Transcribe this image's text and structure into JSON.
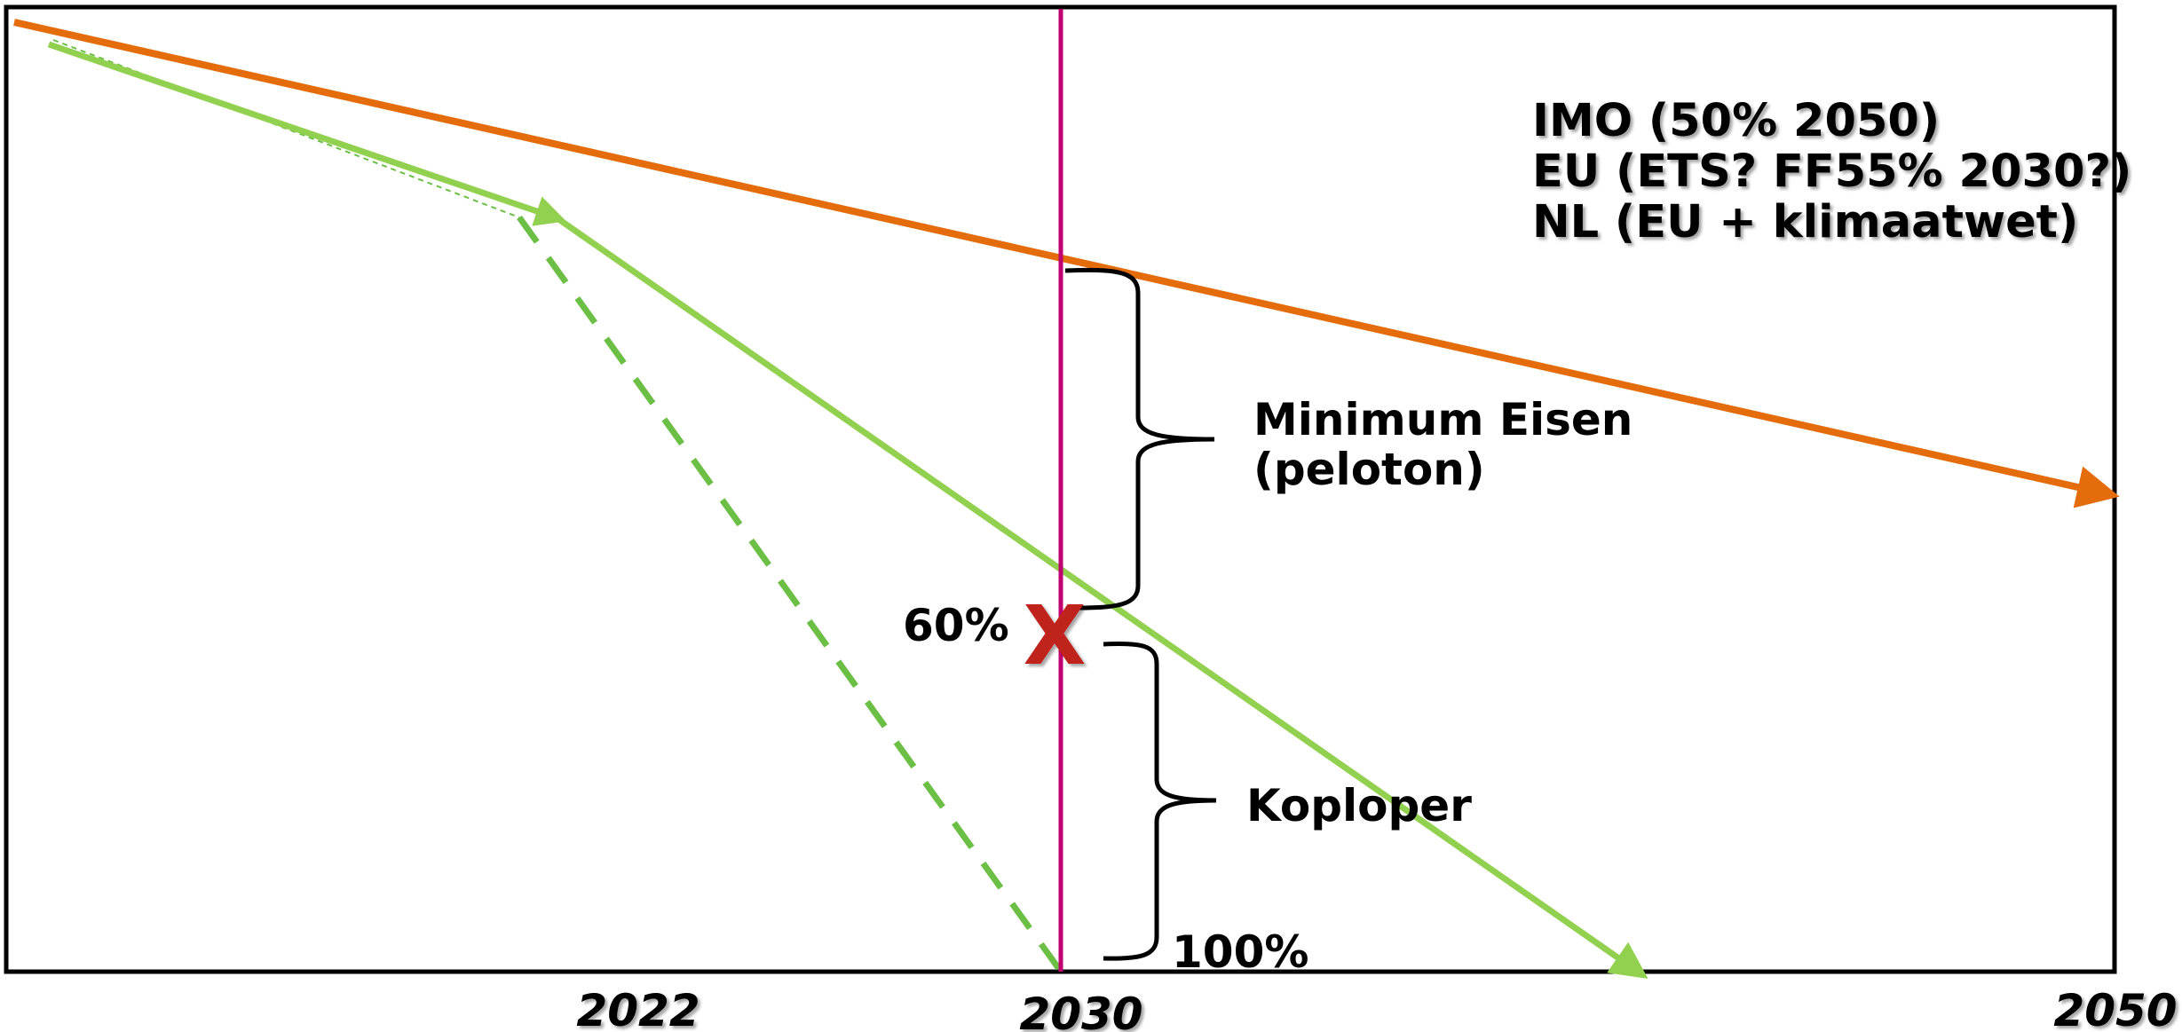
{
  "x_labels": {
    "y2022": "2022",
    "y2030": "2030",
    "y2050": "2050"
  },
  "policy_notes": {
    "imo": "IMO (50% 2050)",
    "eu": "EU (ETS? FF55% 2030?)",
    "nl": "NL (EU + klimaatwet)"
  },
  "brackets": {
    "minimum_line1": "Minimum Eisen",
    "minimum_line2": "(peloton)",
    "koploper": "Koploper"
  },
  "markers": {
    "sixty": "60%",
    "hundred": "100%",
    "x_mark": "X"
  },
  "colors": {
    "policy_line": "#e46c0a",
    "green_line": "#92d050",
    "green_dashed": "#6cbf45",
    "year_2030_line": "#c00070",
    "x_mark": "#c0211b",
    "frame": "#000000"
  }
}
